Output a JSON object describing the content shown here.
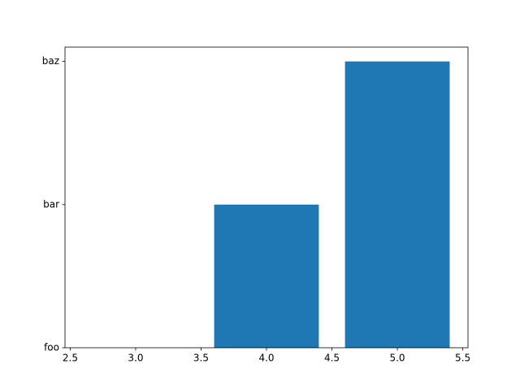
{
  "chart_data": {
    "type": "bar",
    "x": [
      3,
      4,
      5
    ],
    "values": [
      0,
      1,
      2
    ],
    "width": 0.8,
    "color": "#1f77b4",
    "xlim": [
      2.46,
      5.54
    ],
    "xticks": [
      2.5,
      {
        "value": 3,
        "label": "3.0"
      },
      3.5,
      {
        "value": 4,
        "label": "4.0"
      },
      4.5,
      {
        "value": 5,
        "label": "5.0"
      },
      5.5
    ],
    "ylim": [
      0,
      2.1
    ],
    "yticks": [
      {
        "value": 0,
        "label": "foo"
      },
      {
        "value": 1,
        "label": "bar"
      },
      {
        "value": 2,
        "label": "baz"
      }
    ],
    "grid": false
  }
}
